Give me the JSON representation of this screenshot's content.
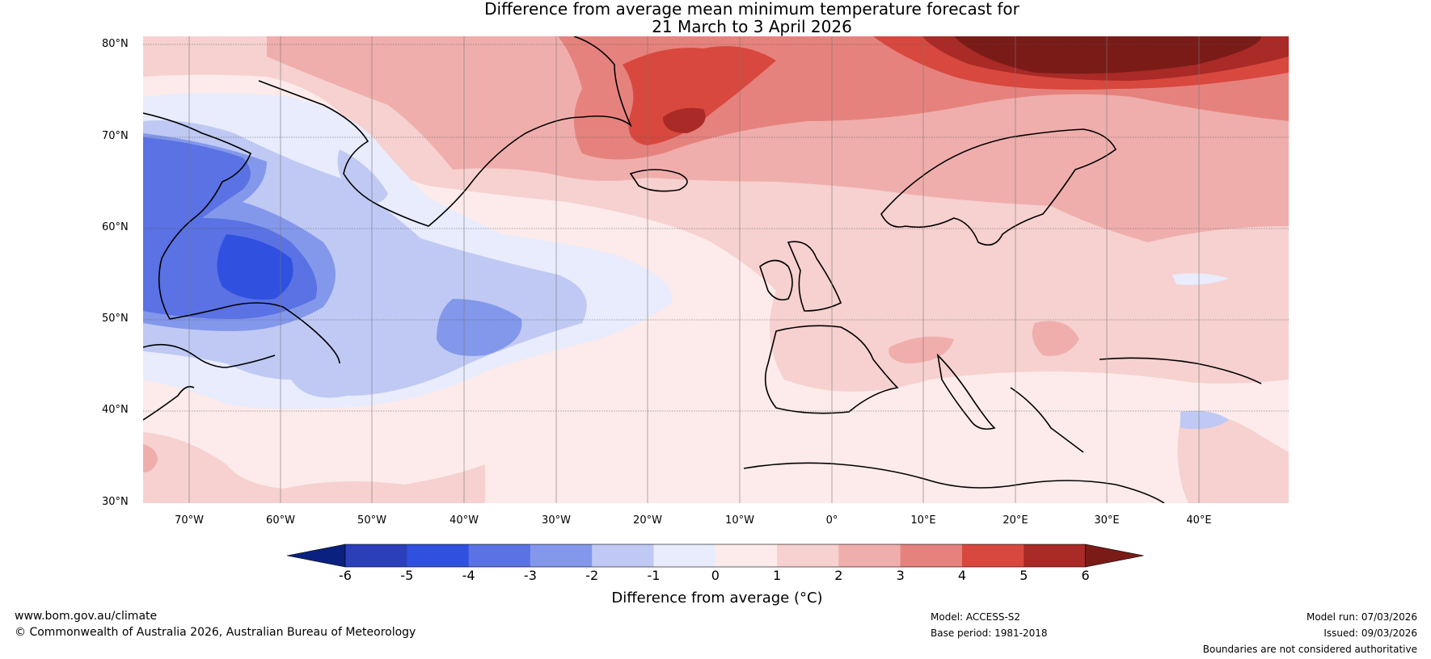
{
  "title_line1": "Difference from average mean minimum temperature forecast for",
  "title_line2": "21 March to 3 April 2026",
  "lat_labels": [
    "80°N",
    "70°N",
    "60°N",
    "50°N",
    "40°N",
    "30°N"
  ],
  "lon_labels": [
    "70°W",
    "60°W",
    "50°W",
    "40°W",
    "30°W",
    "20°W",
    "10°W",
    "0°",
    "10°E",
    "20°E",
    "30°E",
    "40°E"
  ],
  "colorbar": {
    "ticks": [
      "-6",
      "-5",
      "-4",
      "-3",
      "-2",
      "-1",
      "0",
      "1",
      "2",
      "3",
      "4",
      "5",
      "6"
    ],
    "colors": [
      "#0b2180",
      "#2b3fba",
      "#3050e0",
      "#5a72e3",
      "#8398eb",
      "#bfc9f4",
      "#e8ecfc",
      "#fcebea",
      "#f6d1d0",
      "#efaeac",
      "#e6827d",
      "#d8483e",
      "#a92a26",
      "#7a1b17"
    ],
    "label": "Difference from average (°C)"
  },
  "footer": {
    "website": "www.bom.gov.au/climate",
    "copyright": "© Commonwealth of Australia 2026, Australian Bureau of Meteorology",
    "model": "Model: ACCESS-S2",
    "base_period": "Base period: 1981-2018",
    "model_run": "Model run: 07/03/2026",
    "issued": "Issued: 09/03/2026",
    "disclaimer": "Boundaries are not considered authoritative"
  }
}
